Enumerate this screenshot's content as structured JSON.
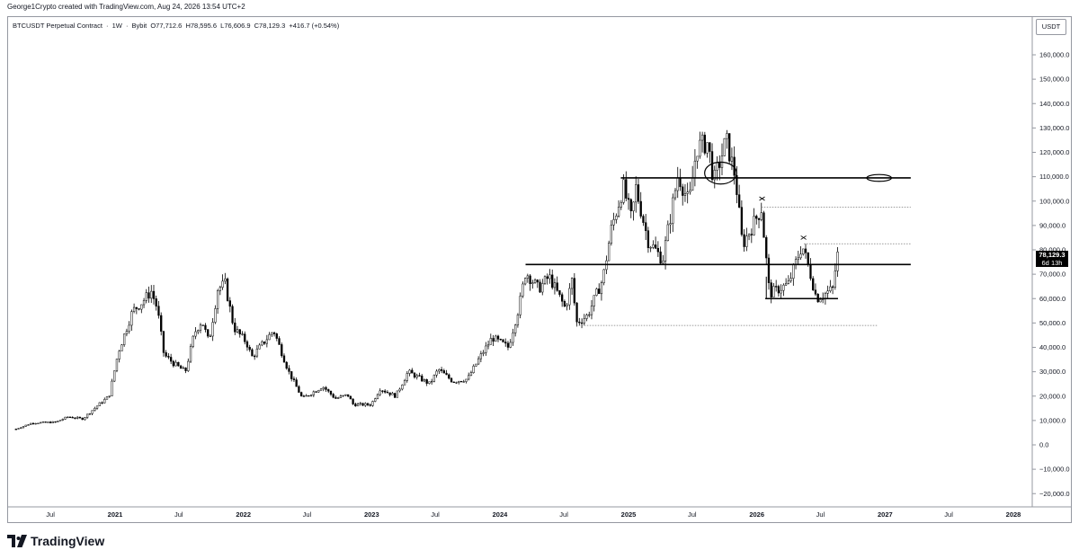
{
  "header": {
    "credit": "George1Crypto created with TradingView.com, Aug 24, 2026 13:54 UTC+2"
  },
  "legend": {
    "symbol": "BTCUSDT Perpetual Contract",
    "separator_1": "·",
    "interval": "1W",
    "separator_2": "·",
    "exchange": "Bybit",
    "open": "O77,712.6",
    "high": "H78,595.6",
    "low": "L76,606.9",
    "close": "C78,129.3",
    "change": "+416.7 (+0.54%)"
  },
  "price_axis": {
    "currency": "USDT",
    "last_price": "78,129.3",
    "countdown": "6d 13h"
  },
  "brand": {
    "name": "TradingView"
  },
  "colors": {
    "candle": "#000000",
    "line": "#000000",
    "axis_text": "#131722",
    "border": "#9598a1"
  },
  "chart_data": {
    "type": "candlestick",
    "symbol": "BTCUSDT Perpetual Contract",
    "interval": "1W",
    "exchange": "Bybit",
    "ylim": [
      -22000,
      170000
    ],
    "y_ticks": [
      -20000,
      -10000,
      0,
      10000,
      20000,
      30000,
      40000,
      50000,
      60000,
      70000,
      80000,
      90000,
      100000,
      110000,
      120000,
      130000,
      140000,
      150000,
      160000
    ],
    "y_tick_labels": [
      "−20,000.0",
      "−10,000.0",
      "0.0",
      "10,000.0",
      "20,000.0",
      "30,000.0",
      "40,000.0",
      "50,000.0",
      "60,000.0",
      "70,000.0",
      "80,000.0",
      "90,000.0",
      "100,000.0",
      "110,000.0",
      "120,000.0",
      "130,000.0",
      "140,000.0",
      "150,000.0",
      "160,000.0"
    ],
    "x_ticks": [
      {
        "date": "2020-07-01",
        "label": "Jul",
        "bold": false
      },
      {
        "date": "2021-01-01",
        "label": "2021",
        "bold": true
      },
      {
        "date": "2021-07-01",
        "label": "Jul",
        "bold": false
      },
      {
        "date": "2022-01-01",
        "label": "2022",
        "bold": true
      },
      {
        "date": "2022-07-01",
        "label": "Jul",
        "bold": false
      },
      {
        "date": "2023-01-01",
        "label": "2023",
        "bold": true
      },
      {
        "date": "2023-07-01",
        "label": "Jul",
        "bold": false
      },
      {
        "date": "2024-01-01",
        "label": "2024",
        "bold": true
      },
      {
        "date": "2024-07-01",
        "label": "Jul",
        "bold": false
      },
      {
        "date": "2025-01-01",
        "label": "2025",
        "bold": true
      },
      {
        "date": "2025-07-01",
        "label": "Jul",
        "bold": false
      },
      {
        "date": "2026-01-01",
        "label": "2026",
        "bold": true
      },
      {
        "date": "2026-07-01",
        "label": "Jul",
        "bold": false
      },
      {
        "date": "2027-01-01",
        "label": "2027",
        "bold": true
      },
      {
        "date": "2027-07-01",
        "label": "Jul",
        "bold": false
      },
      {
        "date": "2028-01-01",
        "label": "2028",
        "bold": true
      }
    ],
    "price_path": [
      [
        "2020-03-25",
        6500
      ],
      [
        "2020-05-10",
        9000
      ],
      [
        "2020-07-15",
        9300
      ],
      [
        "2020-08-20",
        11500
      ],
      [
        "2020-10-01",
        10700
      ],
      [
        "2020-11-15",
        16500
      ],
      [
        "2020-12-15",
        20000
      ],
      [
        "2021-01-10",
        38000
      ],
      [
        "2021-02-20",
        55000
      ],
      [
        "2021-03-15",
        58000
      ],
      [
        "2021-04-14",
        63000
      ],
      [
        "2021-05-01",
        56000
      ],
      [
        "2021-05-20",
        37000
      ],
      [
        "2021-06-20",
        33000
      ],
      [
        "2021-07-20",
        30000
      ],
      [
        "2021-08-15",
        46000
      ],
      [
        "2021-09-05",
        51000
      ],
      [
        "2021-09-25",
        42000
      ],
      [
        "2021-10-20",
        64000
      ],
      [
        "2021-11-10",
        66000
      ],
      [
        "2021-12-05",
        48000
      ],
      [
        "2022-01-10",
        42000
      ],
      [
        "2022-01-25",
        36000
      ],
      [
        "2022-03-28",
        47000
      ],
      [
        "2022-05-10",
        30000
      ],
      [
        "2022-06-18",
        19000
      ],
      [
        "2022-08-15",
        24000
      ],
      [
        "2022-09-20",
        19000
      ],
      [
        "2022-10-25",
        20500
      ],
      [
        "2022-11-10",
        16500
      ],
      [
        "2022-12-30",
        16500
      ],
      [
        "2023-01-25",
        23000
      ],
      [
        "2023-03-10",
        20000
      ],
      [
        "2023-04-15",
        30000
      ],
      [
        "2023-06-15",
        25000
      ],
      [
        "2023-07-10",
        31000
      ],
      [
        "2023-08-20",
        26000
      ],
      [
        "2023-10-01",
        27000
      ],
      [
        "2023-11-01",
        35000
      ],
      [
        "2023-12-10",
        44000
      ],
      [
        "2024-01-25",
        40000
      ],
      [
        "2024-02-25",
        57000
      ],
      [
        "2024-03-14",
        71000
      ],
      [
        "2024-04-20",
        64000
      ],
      [
        "2024-05-20",
        69000
      ],
      [
        "2024-07-05",
        56000
      ],
      [
        "2024-07-25",
        68000
      ],
      [
        "2024-08-05",
        50000
      ],
      [
        "2024-09-06",
        53000
      ],
      [
        "2024-10-20",
        68000
      ],
      [
        "2024-11-12",
        88000
      ],
      [
        "2024-12-17",
        106000
      ],
      [
        "2025-01-10",
        92000
      ],
      [
        "2025-01-21",
        106000
      ],
      [
        "2025-02-25",
        84000
      ],
      [
        "2025-04-08",
        76000
      ],
      [
        "2025-05-22",
        111000
      ],
      [
        "2025-06-22",
        99000
      ],
      [
        "2025-07-14",
        122000
      ],
      [
        "2025-08-14",
        124000
      ],
      [
        "2025-09-01",
        108000
      ],
      [
        "2025-10-06",
        125000
      ],
      [
        "2025-11-01",
        110000
      ],
      [
        "2025-11-21",
        82000
      ],
      [
        "2026-01-14",
        97000
      ],
      [
        "2026-02-06",
        62000
      ],
      [
        "2026-04-01",
        66000
      ],
      [
        "2026-05-10",
        82000
      ],
      [
        "2026-06-01",
        71000
      ],
      [
        "2026-06-20",
        60000
      ],
      [
        "2026-07-25",
        63000
      ],
      [
        "2026-08-05",
        64000
      ],
      [
        "2026-08-18",
        78000
      ],
      [
        "2026-08-24",
        78129
      ]
    ],
    "annotations": {
      "horizontal_lines": [
        {
          "from": "2024-03-14",
          "to": "2027-03-15",
          "price": 74000,
          "style": "solid"
        },
        {
          "from": "2024-12-10",
          "to": "2027-03-15",
          "price": 109500,
          "style": "solid"
        },
        {
          "from": "2026-01-25",
          "to": "2026-08-20",
          "price": 60000,
          "style": "solid"
        },
        {
          "from": "2024-08-05",
          "to": "2026-12-10",
          "price": 49000,
          "style": "dotted"
        },
        {
          "from": "2026-01-14",
          "to": "2027-03-15",
          "price": 97500,
          "style": "dotted"
        },
        {
          "from": "2026-05-15",
          "to": "2027-03-15",
          "price": 82500,
          "style": "dotted"
        }
      ],
      "vertical_segments": [
        {
          "date": "2026-01-28",
          "from_price": 60000,
          "to_price": 69000
        }
      ],
      "ellipses": [
        {
          "date": "2025-09-20",
          "price": 111500,
          "rx_weeks": 6.5,
          "ry_price": 4500
        },
        {
          "date": "2026-12-15",
          "price": 109500,
          "rx_weeks": 5,
          "ry_price": 1400
        }
      ],
      "x_marks": [
        {
          "date": "2026-01-16",
          "price": 101000
        },
        {
          "date": "2026-05-14",
          "price": 85000
        }
      ]
    }
  }
}
